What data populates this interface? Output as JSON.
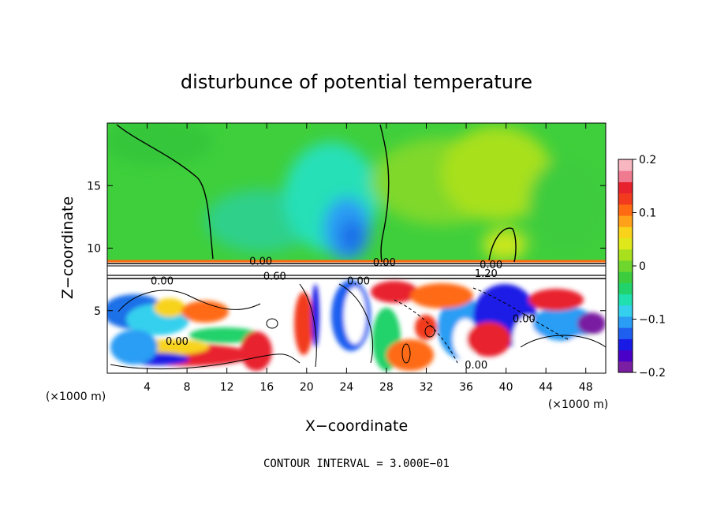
{
  "chart_data": {
    "type": "heatmap",
    "title": "disturbunce of potential temperature",
    "xlabel": "X−coordinate",
    "ylabel": "Z−coordinate",
    "x_unit_note": "(×1000 m)",
    "z_unit_note": "(×1000 m)",
    "xlim": [
      0,
      50
    ],
    "ylim": [
      0,
      20
    ],
    "x_ticks": [
      4,
      8,
      12,
      16,
      20,
      24,
      28,
      32,
      36,
      40,
      44,
      48
    ],
    "y_ticks": [
      5,
      10,
      15
    ],
    "colorbar": {
      "min": -0.2,
      "max": 0.2,
      "ticks": [
        {
          "value": 0.2,
          "label": "0.2"
        },
        {
          "value": 0.1,
          "label": "0.1"
        },
        {
          "value": 0,
          "label": "0"
        },
        {
          "value": -0.1,
          "label": "−0.1"
        },
        {
          "value": -0.2,
          "label": "−0.2"
        }
      ],
      "colors": [
        "#7a1fa2",
        "#4b00c8",
        "#1a1ae6",
        "#1e5ff0",
        "#2a9df4",
        "#35d0ee",
        "#20e0b0",
        "#22d26a",
        "#3dcc3d",
        "#6fd62e",
        "#a8e01e",
        "#dfe81a",
        "#f8d31a",
        "#ffa21a",
        "#ff6a12",
        "#f23a1e",
        "#e8212e",
        "#f07a90",
        "#f7b6c0"
      ]
    },
    "contour_labels": [
      {
        "x": 15.4,
        "z": 9.0,
        "label": "0.00"
      },
      {
        "x": 16.8,
        "z": 7.8,
        "label": "0.60"
      },
      {
        "x": 5.5,
        "z": 7.4,
        "label": "0.00"
      },
      {
        "x": 27.8,
        "z": 8.9,
        "label": "0.00"
      },
      {
        "x": 25.2,
        "z": 7.4,
        "label": "0.00"
      },
      {
        "x": 38.5,
        "z": 8.7,
        "label": "0.00"
      },
      {
        "x": 38.0,
        "z": 8.0,
        "label": "1.20"
      },
      {
        "x": 7.0,
        "z": 2.6,
        "label": "0.00"
      },
      {
        "x": 41.8,
        "z": 4.4,
        "label": "0.00"
      },
      {
        "x": 37.0,
        "z": 0.7,
        "label": "0.00"
      }
    ],
    "footnote": "CONTOUR INTERVAL = 3.000E−01"
  }
}
